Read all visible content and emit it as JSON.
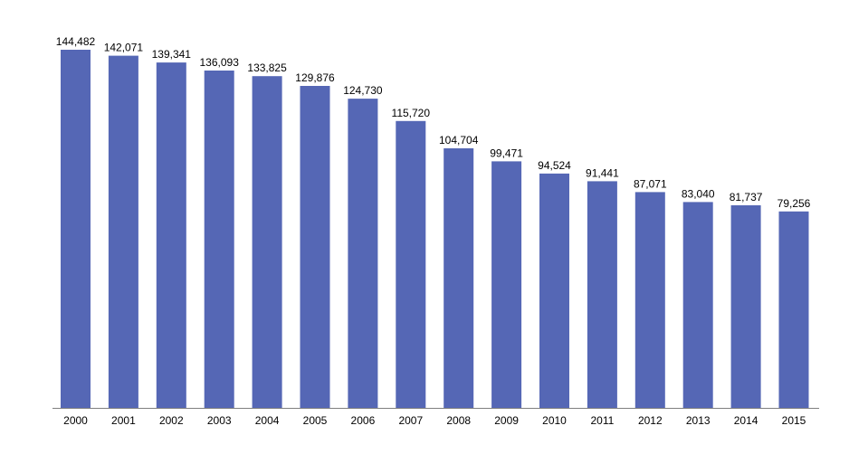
{
  "chart_data": {
    "type": "bar",
    "title": "",
    "xlabel": "",
    "ylabel": "",
    "categories": [
      "2000",
      "2001",
      "2002",
      "2003",
      "2004",
      "2005",
      "2006",
      "2007",
      "2008",
      "2009",
      "2010",
      "2011",
      "2012",
      "2013",
      "2014",
      "2015"
    ],
    "values": [
      144482,
      142071,
      139341,
      136093,
      133825,
      129876,
      124730,
      115720,
      104704,
      99471,
      94524,
      91441,
      87071,
      83040,
      81737,
      79256
    ],
    "data_labels": [
      "144,482",
      "142,071",
      "139,341",
      "136,093",
      "133,825",
      "129,876",
      "124,730",
      "115,720",
      "104,704",
      "99,471",
      "94,524",
      "91,441",
      "87,071",
      "83,040",
      "81,737",
      "79,256"
    ],
    "ylim": [
      0,
      144482
    ],
    "grid": false,
    "legend": "none",
    "colors": {
      "bar": "#5567b5",
      "axis": "#7f7f7f"
    }
  }
}
